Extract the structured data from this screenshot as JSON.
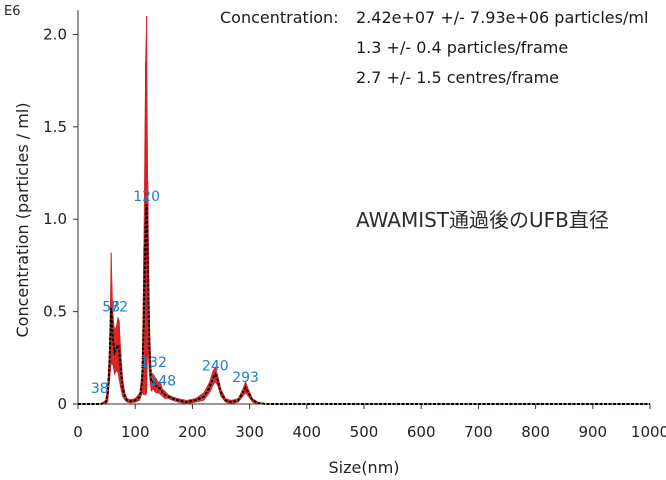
{
  "chart_data": {
    "type": "line",
    "exponent_label": "E6",
    "xlabel": "Size(nm)",
    "ylabel": "Concentration (particles / ml)",
    "xlim": [
      0,
      1000
    ],
    "ylim": [
      0,
      2.1
    ],
    "x_ticks": [
      0,
      100,
      200,
      300,
      400,
      500,
      600,
      700,
      800,
      900,
      1000
    ],
    "y_ticks": [
      0,
      0.5,
      1.0,
      1.5,
      2.0
    ],
    "y_tick_labels": [
      "0",
      "0.5",
      "1.0",
      "1.5",
      "2.0"
    ],
    "grid": false,
    "series": [
      {
        "color": "#000000",
        "error_color": "#d42020",
        "x": [
          0,
          40,
          48,
          52,
          55,
          58,
          61,
          64,
          67,
          70,
          72,
          75,
          78,
          82,
          86,
          92,
          100,
          108,
          112,
          115,
          118,
          120,
          122,
          125,
          128,
          132,
          136,
          140,
          145,
          148,
          152,
          158,
          165,
          175,
          190,
          205,
          220,
          230,
          236,
          240,
          244,
          250,
          258,
          268,
          280,
          288,
          293,
          298,
          305,
          315,
          330,
          360,
          400,
          500,
          600,
          700,
          800,
          900,
          1000
        ],
        "y": [
          0,
          0,
          0.01,
          0.05,
          0.22,
          0.52,
          0.35,
          0.28,
          0.3,
          0.32,
          0.29,
          0.18,
          0.09,
          0.04,
          0.02,
          0.015,
          0.02,
          0.04,
          0.12,
          0.45,
          0.95,
          1.08,
          0.75,
          0.3,
          0.12,
          0.12,
          0.1,
          0.09,
          0.08,
          0.06,
          0.05,
          0.04,
          0.03,
          0.02,
          0.01,
          0.02,
          0.04,
          0.09,
          0.14,
          0.16,
          0.13,
          0.06,
          0.02,
          0.01,
          0.02,
          0.06,
          0.09,
          0.06,
          0.02,
          0.005,
          0,
          0,
          0,
          0,
          0,
          0,
          0,
          0,
          0
        ],
        "err": [
          0,
          0,
          0.01,
          0.04,
          0.1,
          0.3,
          0.14,
          0.12,
          0.12,
          0.15,
          0.16,
          0.1,
          0.05,
          0.02,
          0.01,
          0.01,
          0.01,
          0.02,
          0.06,
          0.4,
          0.9,
          1.02,
          0.45,
          0.15,
          0.05,
          0.04,
          0.04,
          0.03,
          0.03,
          0.02,
          0.02,
          0.01,
          0.01,
          0.01,
          0.01,
          0.01,
          0.02,
          0.03,
          0.04,
          0.04,
          0.03,
          0.02,
          0.01,
          0.01,
          0.01,
          0.02,
          0.03,
          0.02,
          0.01,
          0.005,
          0,
          0,
          0,
          0,
          0,
          0,
          0,
          0,
          0
        ]
      }
    ],
    "peak_labels": [
      {
        "text": "58",
        "x": 58,
        "y": 0.5
      },
      {
        "text": "72",
        "x": 72,
        "y": 0.5
      },
      {
        "text": "38",
        "x": 38,
        "y": 0.06
      },
      {
        "text": "120",
        "x": 120,
        "y": 1.1
      },
      {
        "text": "132",
        "x": 132,
        "y": 0.2
      },
      {
        "text": "148",
        "x": 148,
        "y": 0.1
      },
      {
        "text": "240",
        "x": 240,
        "y": 0.18
      },
      {
        "text": "293",
        "x": 293,
        "y": 0.12
      }
    ],
    "peak_label_color": "#1a7fcf"
  },
  "stats": {
    "concentration_label": "Concentration:",
    "concentration_value": "2.42e+07 +/- 7.93e+06 particles/ml",
    "particles_per_frame": "1.3 +/- 0.4 particles/frame",
    "centres_per_frame": "2.7 +/- 1.5 centres/frame"
  },
  "annotation": "AWAMIST通過後のUFB直径"
}
